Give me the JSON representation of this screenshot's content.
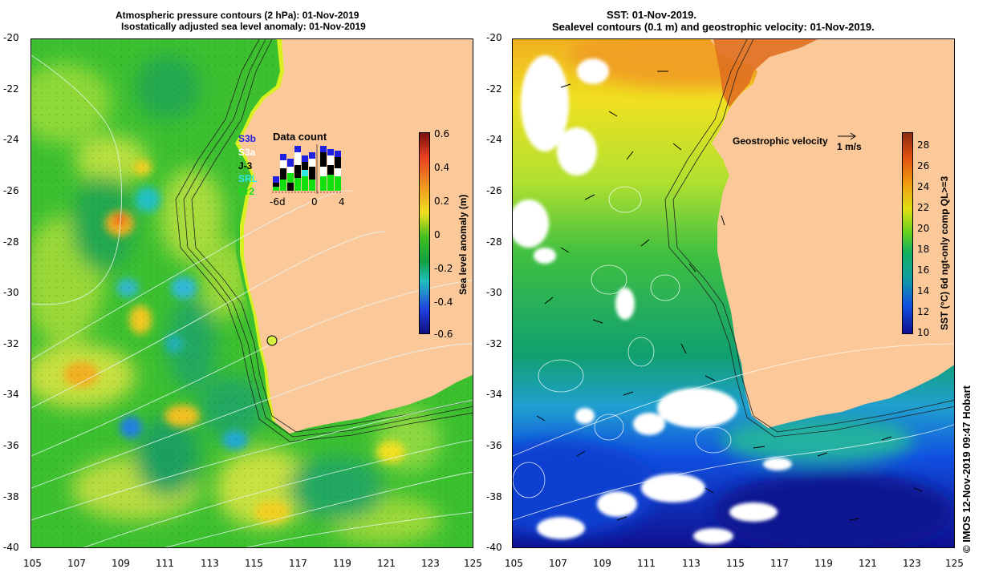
{
  "left": {
    "title_line1": "Atmospheric pressure contours (2 hPa): 01-Nov-2019",
    "title_line2": "Isostatically adjusted sea level anomaly: 01-Nov-2019",
    "colorbar_label": "Sea level anomaly (m)",
    "colorbar_ticks": [
      "0.6",
      "0.4",
      "0.2",
      "0",
      "-0.2",
      "-0.4",
      "-0.6"
    ],
    "legend_title": "Data count",
    "satellites": [
      {
        "name": "S3b",
        "color": "#2020e0"
      },
      {
        "name": "S3a",
        "color": "#ffffff"
      },
      {
        "name": "J-3",
        "color": "#000000"
      },
      {
        "name": "SRL",
        "color": "#30e8e8"
      },
      {
        "name": "Cr2",
        "color": "#10e010"
      }
    ],
    "data_count_axis": [
      "-6d",
      "0",
      "4"
    ]
  },
  "right": {
    "title_line1": "SST: 01-Nov-2019.",
    "title_line2": "Sealevel contours (0.1 m) and geostrophic velocity: 01-Nov-2019.",
    "velocity_label": "Geostrophic velocity",
    "velocity_scale": "1 m/s",
    "colorbar_label": "SST (°C) 6d ngt-only comp QL>=3",
    "colorbar_ticks": [
      "28",
      "26",
      "24",
      "22",
      "20",
      "18",
      "16",
      "14",
      "12",
      "10"
    ]
  },
  "axes": {
    "lat_ticks": [
      "-20",
      "-22",
      "-24",
      "-26",
      "-28",
      "-30",
      "-32",
      "-34",
      "-36",
      "-38",
      "-40"
    ],
    "lon_ticks": [
      "105",
      "107",
      "109",
      "111",
      "113",
      "115",
      "117",
      "119",
      "121",
      "123",
      "125"
    ]
  },
  "credit": "© IMOS 12-Nov-2019 09:47 Hobart",
  "colors": {
    "land": "#fbc89a",
    "sla_colormap": [
      "#7a1010",
      "#e84020",
      "#f0a020",
      "#f0e020",
      "#40c020",
      "#10a040",
      "#20c0c0",
      "#2040e0",
      "#101080"
    ],
    "sst_colormap": [
      "#8a2a10",
      "#e05010",
      "#f0a010",
      "#e0e010",
      "#60d020",
      "#10b060",
      "#10a0a0",
      "#1050e0",
      "#101090"
    ]
  }
}
